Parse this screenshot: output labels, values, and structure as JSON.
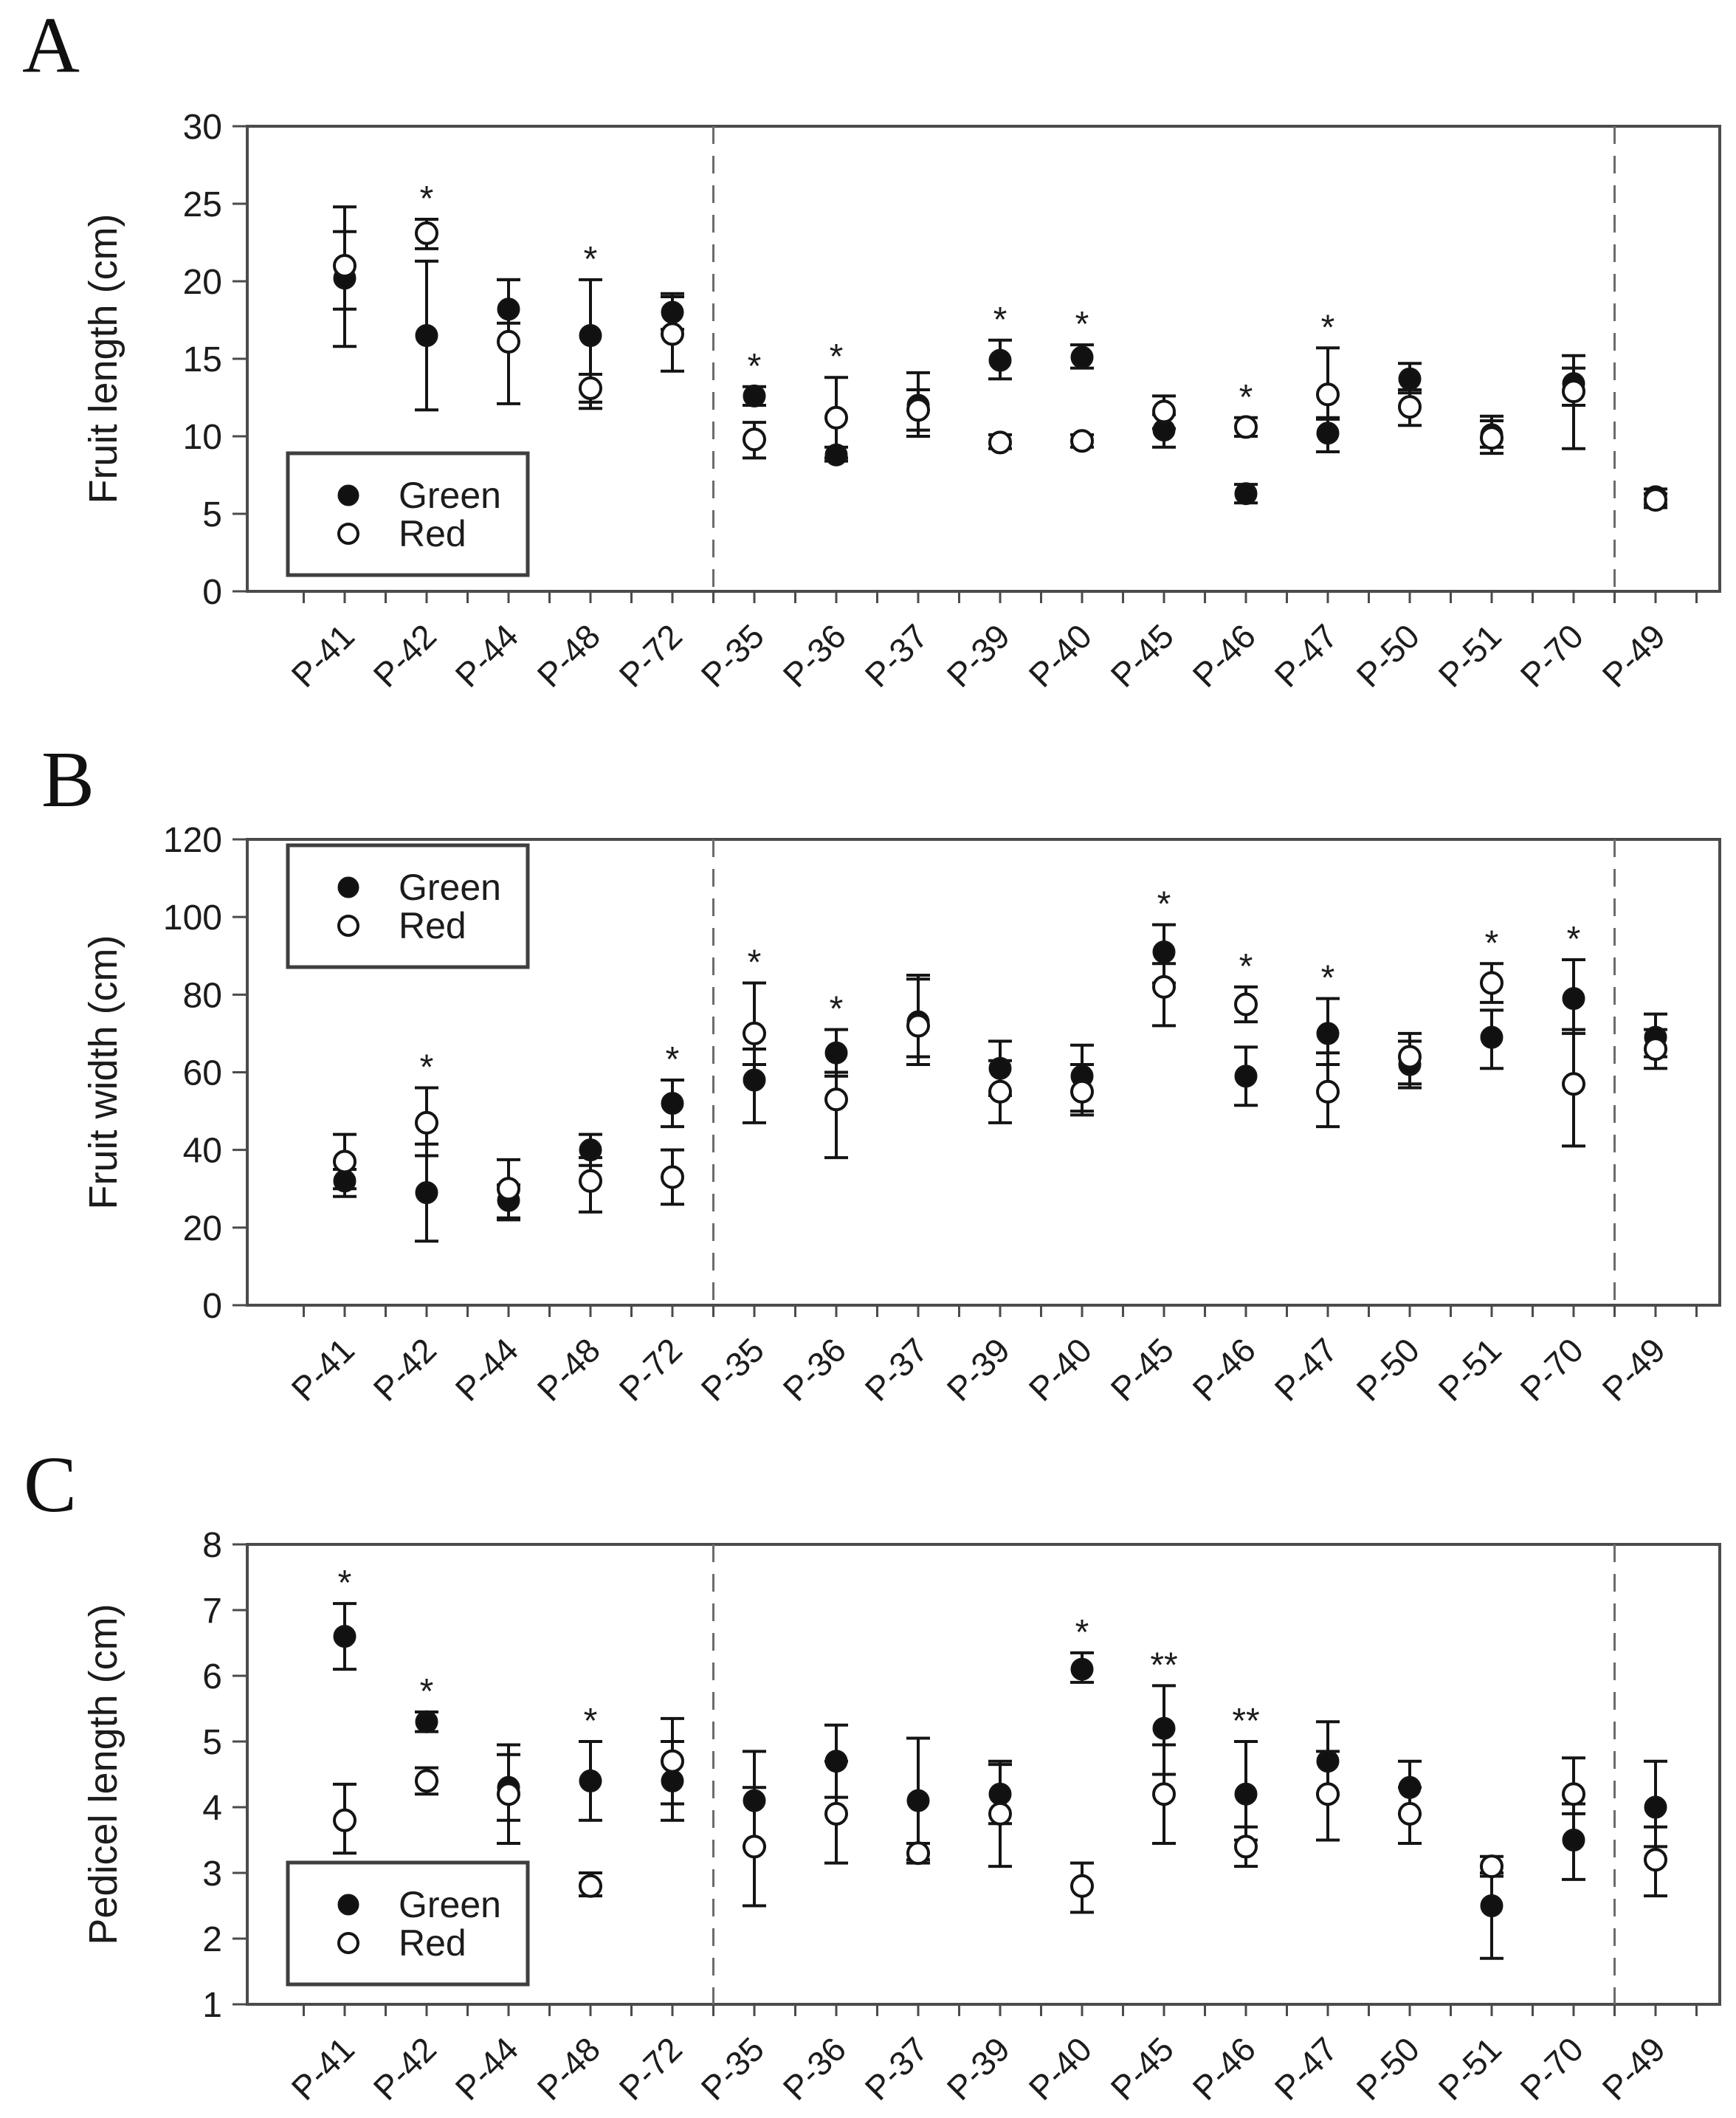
{
  "figure": {
    "panels": [
      {
        "letter": "A"
      },
      {
        "letter": "B"
      },
      {
        "letter": "C"
      }
    ],
    "legend": {
      "green_label": "Green",
      "red_label": "Red"
    },
    "colors": {
      "foreground": "#1c1c1c",
      "axis": "#4b4b4b",
      "marker_fill": "#111111",
      "open_fill": "#ffffff",
      "dashed": "#6b6b6b"
    }
  },
  "chart_data": [
    {
      "type": "scatter",
      "panel": "A",
      "title": "",
      "xlabel": "",
      "ylabel": "Fruit length (cm)",
      "ylim": [
        0,
        30
      ],
      "yticks": [
        0,
        5,
        10,
        15,
        20,
        25,
        30
      ],
      "grid": false,
      "legend_position": "bottom-left",
      "categories": [
        "P-41",
        "P-42",
        "P-44",
        "P-48",
        "P-72",
        "P-35",
        "P-36",
        "P-37",
        "P-39",
        "P-40",
        "P-45",
        "P-46",
        "P-47",
        "P-50",
        "P-51",
        "P-70",
        "P-49"
      ],
      "separators_after_index": [
        4,
        15
      ],
      "series": [
        {
          "name": "Green",
          "marker": "filled-circle",
          "values": [
            20.2,
            16.5,
            18.2,
            16.5,
            18.0,
            12.6,
            8.8,
            12.0,
            14.9,
            15.1,
            10.4,
            6.3,
            10.2,
            13.7,
            10.1,
            13.4,
            6.1
          ],
          "err_low": [
            18.2,
            11.7,
            17.3,
            11.8,
            16.9,
            12.0,
            8.4,
            10.4,
            13.7,
            14.4,
            9.3,
            5.7,
            9.0,
            12.8,
            9.3,
            12.0,
            5.6
          ],
          "err_high": [
            23.2,
            21.3,
            20.1,
            20.1,
            19.2,
            13.2,
            9.3,
            13.0,
            16.2,
            15.9,
            11.4,
            6.9,
            11.1,
            14.7,
            11.3,
            15.2,
            6.6
          ]
        },
        {
          "name": "Red",
          "marker": "open-circle",
          "values": [
            21.0,
            23.1,
            16.1,
            13.1,
            16.6,
            9.8,
            11.2,
            11.7,
            9.6,
            9.7,
            11.6,
            10.6,
            12.7,
            11.9,
            9.9,
            12.9,
            5.9
          ],
          "err_low": [
            15.8,
            22.1,
            12.1,
            12.2,
            14.2,
            8.6,
            8.6,
            10.0,
            9.2,
            9.3,
            10.5,
            10.0,
            11.2,
            10.7,
            8.9,
            9.2,
            5.4
          ],
          "err_high": [
            24.8,
            24.0,
            20.1,
            14.0,
            19.0,
            10.9,
            13.8,
            14.1,
            10.1,
            10.1,
            12.6,
            11.2,
            15.7,
            13.0,
            11.0,
            14.4,
            6.3
          ]
        }
      ],
      "significance": [
        "",
        "*",
        "",
        "*",
        "",
        "*",
        "*",
        "",
        "*",
        "*",
        "",
        "*",
        "*",
        "",
        "",
        "",
        ""
      ]
    },
    {
      "type": "scatter",
      "panel": "B",
      "title": "",
      "xlabel": "",
      "ylabel": "Fruit width (cm)",
      "ylim": [
        0,
        120
      ],
      "yticks": [
        0,
        20,
        40,
        60,
        80,
        100,
        120
      ],
      "grid": false,
      "legend_position": "top-left",
      "categories": [
        "P-41",
        "P-42",
        "P-44",
        "P-48",
        "P-72",
        "P-35",
        "P-36",
        "P-37",
        "P-39",
        "P-40",
        "P-45",
        "P-46",
        "P-47",
        "P-50",
        "P-51",
        "P-70",
        "P-49"
      ],
      "separators_after_index": [
        4,
        15
      ],
      "series": [
        {
          "name": "Green",
          "marker": "filled-circle",
          "values": [
            32,
            29,
            27,
            40,
            52,
            58,
            65,
            73,
            61,
            59,
            91,
            59,
            70,
            62,
            69,
            79,
            69
          ],
          "err_low": [
            28,
            16.5,
            22,
            36,
            46,
            47,
            59,
            64,
            54,
            50,
            83,
            51.5,
            62,
            56,
            61,
            70,
            64
          ],
          "err_high": [
            35,
            41.5,
            31,
            44,
            58,
            66,
            71,
            85,
            68,
            67,
            98,
            66.5,
            79,
            68,
            76,
            89,
            75
          ]
        },
        {
          "name": "Red",
          "marker": "open-circle",
          "values": [
            37,
            47,
            30,
            32,
            33,
            70,
            53,
            72,
            55,
            55,
            82,
            77.5,
            55,
            64,
            83,
            57,
            66
          ],
          "err_low": [
            30,
            38.5,
            22.5,
            24,
            26,
            62,
            38,
            62,
            47,
            49,
            72,
            73,
            46,
            57,
            78,
            41,
            61
          ],
          "err_high": [
            44,
            56,
            37.5,
            38,
            40,
            83,
            60,
            84,
            63,
            62,
            88,
            82,
            65,
            70,
            88,
            71,
            71
          ]
        }
      ],
      "significance": [
        "",
        "*",
        "",
        "",
        "*",
        "*",
        "*",
        "",
        "",
        "",
        "*",
        "*",
        "*",
        "",
        "*",
        "*",
        ""
      ]
    },
    {
      "type": "scatter",
      "panel": "C",
      "title": "",
      "xlabel": "",
      "ylabel": "Pedicel length (cm)",
      "ylim": [
        1,
        8
      ],
      "yticks": [
        1,
        2,
        3,
        4,
        5,
        6,
        7,
        8
      ],
      "grid": false,
      "legend_position": "bottom-left",
      "categories": [
        "P-41",
        "P-42",
        "P-44",
        "P-48",
        "P-72",
        "P-35",
        "P-36",
        "P-37",
        "P-39",
        "P-40",
        "P-45",
        "P-46",
        "P-47",
        "P-50",
        "P-51",
        "P-70",
        "P-49"
      ],
      "separators_after_index": [
        4,
        15
      ],
      "series": [
        {
          "name": "Green",
          "marker": "filled-circle",
          "values": [
            6.6,
            5.3,
            4.3,
            4.4,
            4.4,
            4.1,
            4.7,
            4.1,
            4.2,
            6.1,
            5.2,
            4.2,
            4.7,
            4.3,
            2.5,
            3.5,
            4.0
          ],
          "err_low": [
            6.1,
            5.15,
            3.45,
            3.8,
            3.8,
            3.4,
            4.15,
            3.2,
            3.75,
            5.9,
            4.5,
            3.5,
            4.2,
            3.9,
            1.7,
            2.9,
            3.4
          ],
          "err_high": [
            7.1,
            5.45,
            4.95,
            5.0,
            5.0,
            4.85,
            5.25,
            5.05,
            4.65,
            6.35,
            5.85,
            5.0,
            5.3,
            4.7,
            3.0,
            4.05,
            4.7
          ]
        },
        {
          "name": "Red",
          "marker": "open-circle",
          "values": [
            3.8,
            4.4,
            4.2,
            2.8,
            4.7,
            3.4,
            3.9,
            3.3,
            3.9,
            2.8,
            4.2,
            3.4,
            4.2,
            3.9,
            3.1,
            4.2,
            3.2
          ],
          "err_low": [
            3.3,
            4.2,
            3.8,
            2.65,
            4.05,
            2.5,
            3.15,
            3.15,
            3.1,
            2.4,
            3.45,
            3.1,
            3.5,
            3.45,
            2.95,
            3.9,
            2.65
          ],
          "err_high": [
            4.35,
            4.6,
            4.8,
            3.0,
            5.35,
            4.3,
            4.7,
            3.45,
            4.7,
            3.15,
            4.95,
            3.7,
            4.85,
            4.3,
            3.25,
            4.75,
            3.7
          ]
        }
      ],
      "significance": [
        "*",
        "*",
        "",
        "*",
        "",
        "",
        "",
        "",
        "",
        "*",
        "**",
        "**",
        "",
        "",
        "",
        "",
        ""
      ]
    }
  ]
}
